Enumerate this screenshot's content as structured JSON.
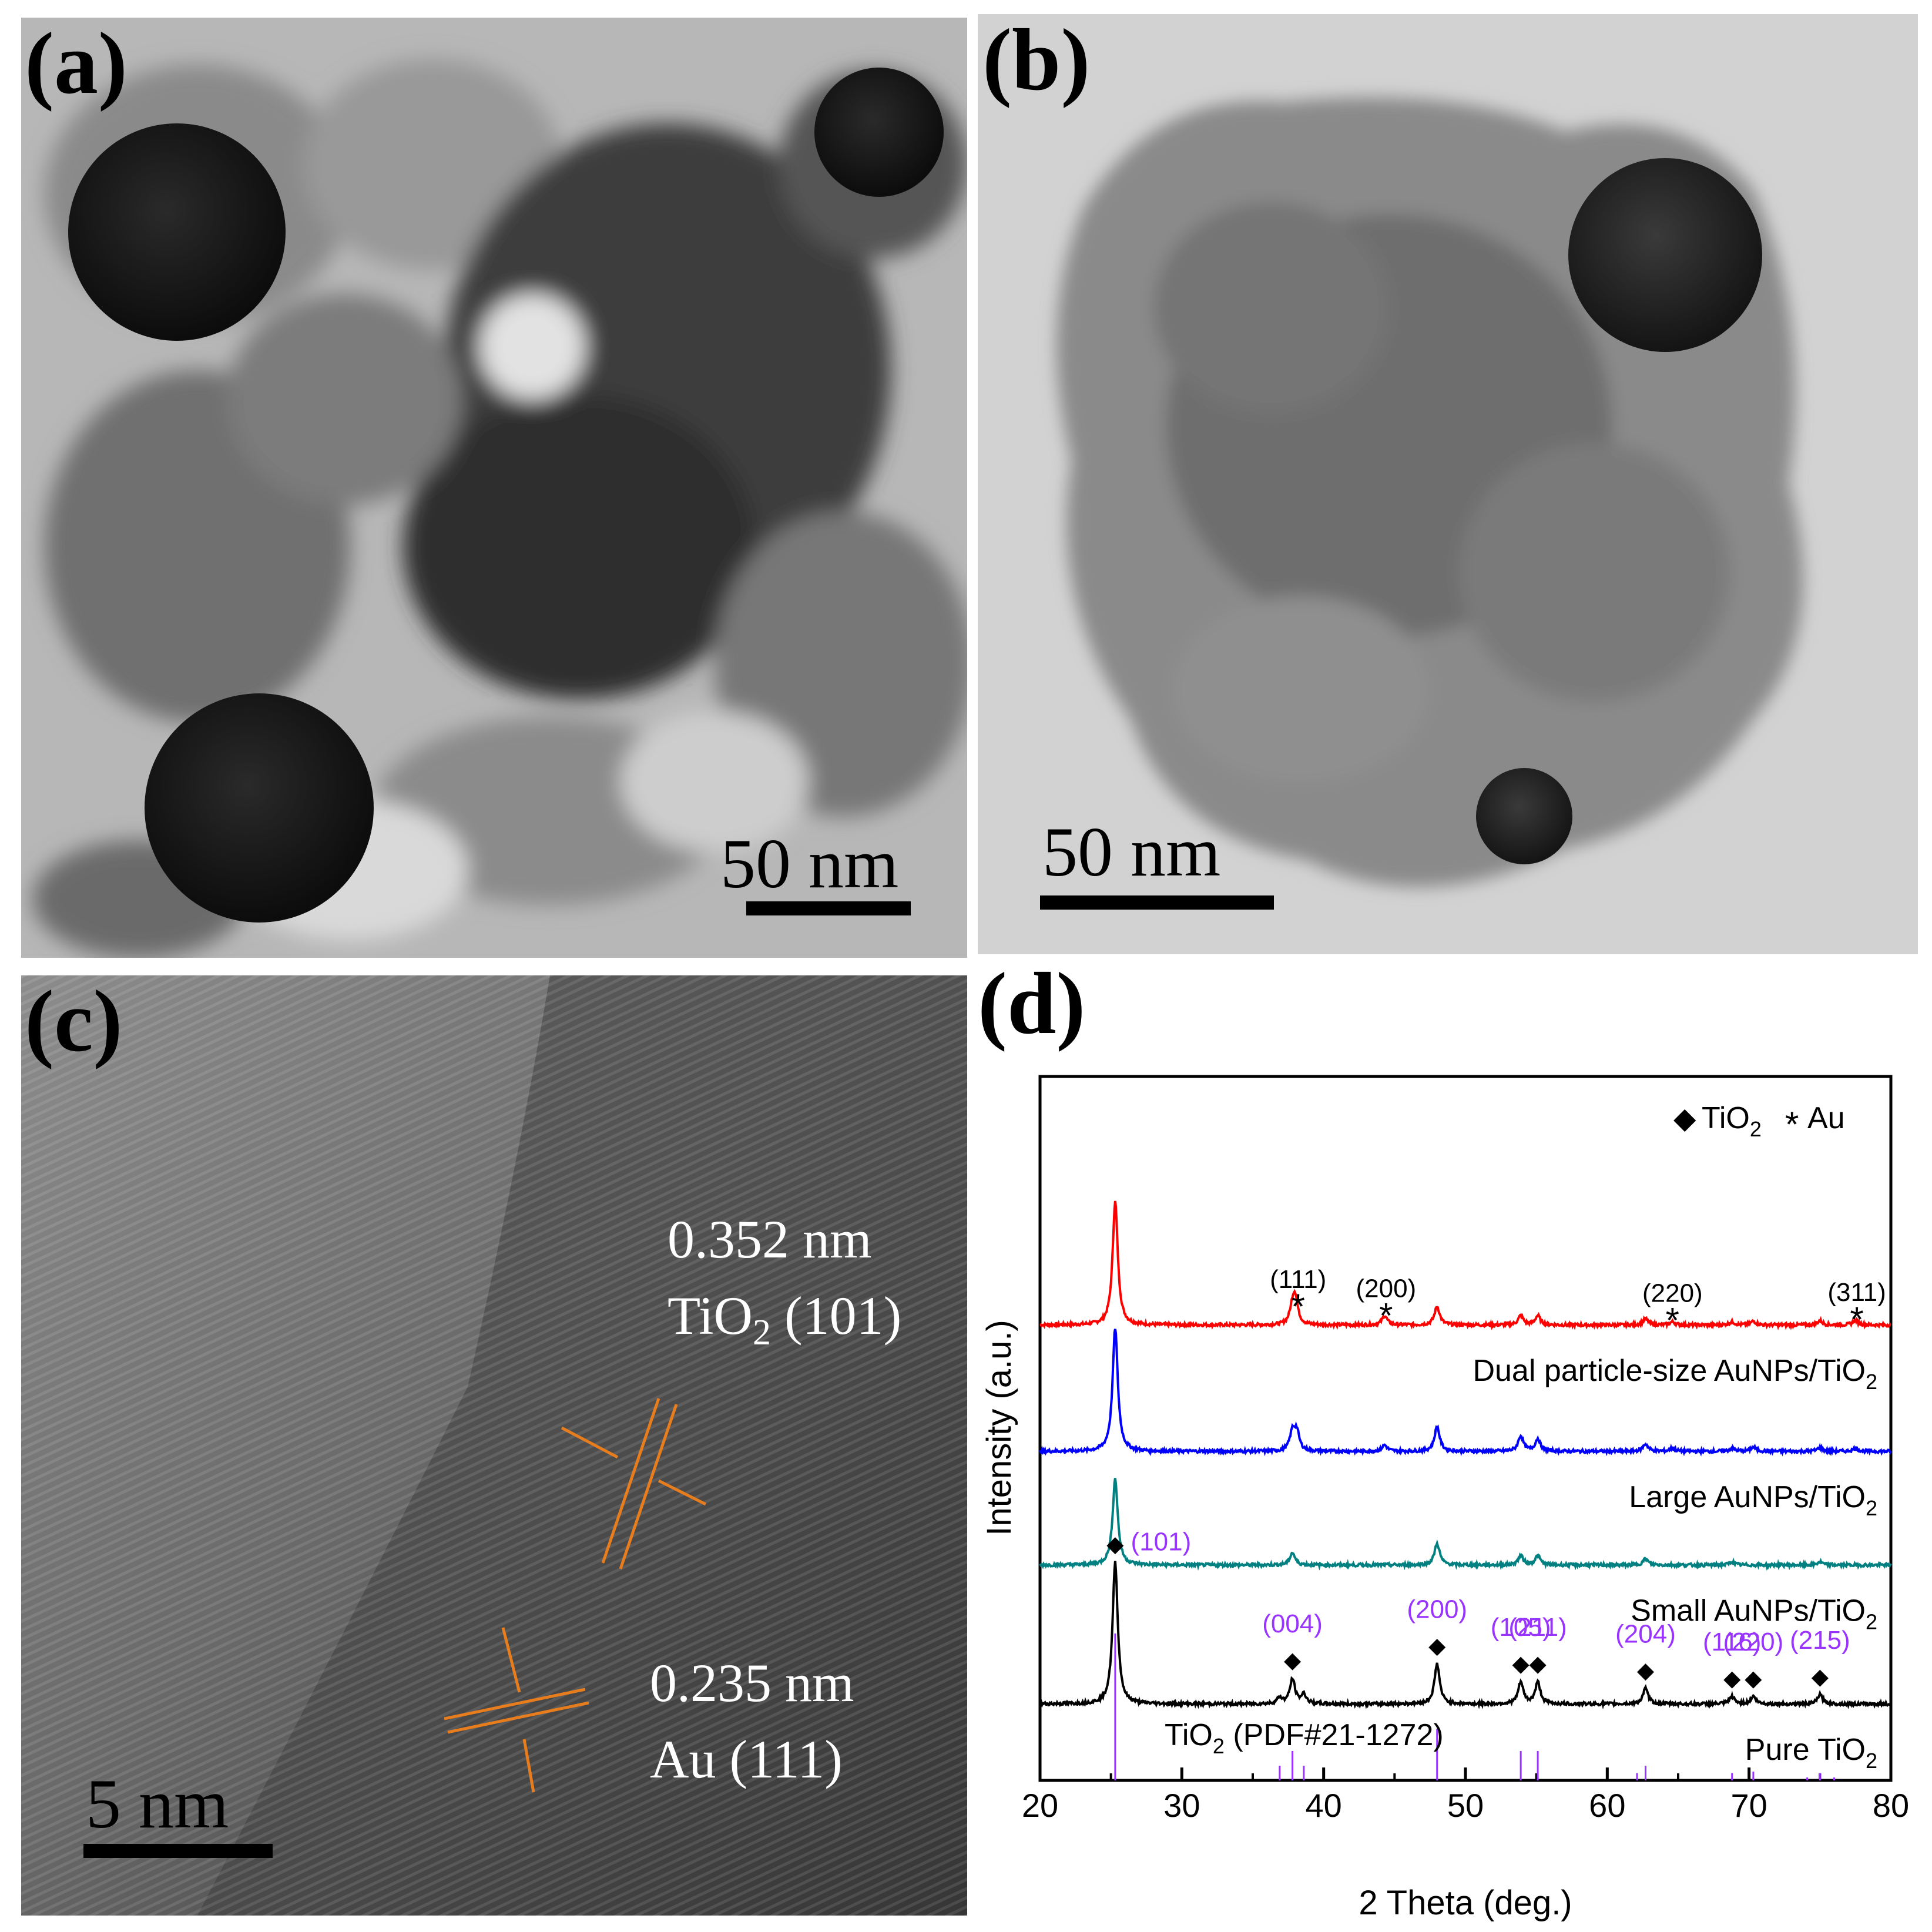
{
  "panels": {
    "a": {
      "label": "(a)",
      "scale_bar": "50 nm"
    },
    "b": {
      "label": "(b)",
      "scale_bar": "50 nm"
    },
    "c": {
      "label": "(c)",
      "scale_bar": "5 nm",
      "fringe_tio2_spacing": "0.352 nm",
      "fringe_tio2_phase": "TiO",
      "fringe_tio2_phase_sub": "2",
      "fringe_tio2_plane": " (101)",
      "fringe_au_spacing": "0.235 nm",
      "fringe_au_plane": "Au (111)"
    },
    "d": {
      "label": "(d)"
    }
  },
  "chart_data": {
    "type": "line",
    "xlabel": "2 Theta (deg.)",
    "ylabel": "Intensity (a.u.)",
    "xlim": [
      20,
      80
    ],
    "xticks": [
      20,
      30,
      40,
      50,
      60,
      70,
      80
    ],
    "legend": {
      "tio2_marker": "◆",
      "tio2_text": "TiO",
      "tio2_sub": "2",
      "au_marker": "*",
      "au_text": "Au",
      "placement": "top-right"
    },
    "series": [
      {
        "name": "Dual particle-size AuNPs/TiO2",
        "label_main": "Dual particle-size AuNPs/TiO",
        "label_sub": "2",
        "color": "#ff0000",
        "offset": 3.0,
        "peaks": [
          [
            25.3,
            2.0
          ],
          [
            37.8,
            0.25
          ],
          [
            38.0,
            0.4
          ],
          [
            44.3,
            0.15
          ],
          [
            48.0,
            0.3
          ],
          [
            53.9,
            0.15
          ],
          [
            55.1,
            0.15
          ],
          [
            62.7,
            0.1
          ],
          [
            64.6,
            0.05
          ],
          [
            68.8,
            0.05
          ],
          [
            70.3,
            0.06
          ],
          [
            75.0,
            0.07
          ],
          [
            77.5,
            0.08
          ]
        ]
      },
      {
        "name": "Large AuNPs/TiO2",
        "label_main": "Large AuNPs/TiO",
        "label_sub": "2",
        "color": "#0000ff",
        "offset": 2.0,
        "peaks": [
          [
            25.3,
            2.0
          ],
          [
            37.8,
            0.3
          ],
          [
            38.1,
            0.3
          ],
          [
            44.3,
            0.1
          ],
          [
            48.0,
            0.4
          ],
          [
            53.9,
            0.25
          ],
          [
            55.1,
            0.2
          ],
          [
            62.7,
            0.12
          ],
          [
            64.6,
            0.05
          ],
          [
            68.8,
            0.05
          ],
          [
            70.3,
            0.07
          ],
          [
            75.0,
            0.06
          ],
          [
            77.5,
            0.05
          ]
        ]
      },
      {
        "name": "Small AuNPs/TiO2",
        "label_main": "Small AuNPs/TiO",
        "label_sub": "2",
        "color": "#008080",
        "offset": 1.1,
        "peaks": [
          [
            25.3,
            1.4
          ],
          [
            37.8,
            0.2
          ],
          [
            48.0,
            0.35
          ],
          [
            53.9,
            0.15
          ],
          [
            55.1,
            0.15
          ],
          [
            62.7,
            0.1
          ],
          [
            68.8,
            0.05
          ],
          [
            75.0,
            0.05
          ]
        ]
      },
      {
        "name": "Pure TiO2",
        "label_main": "Pure TiO",
        "label_sub": "2",
        "color": "#000000",
        "offset": 0.0,
        "peaks": [
          [
            25.3,
            2.3
          ],
          [
            36.9,
            0.1
          ],
          [
            37.8,
            0.4
          ],
          [
            38.6,
            0.15
          ],
          [
            48.0,
            0.65
          ],
          [
            53.9,
            0.35
          ],
          [
            55.1,
            0.35
          ],
          [
            62.7,
            0.25
          ],
          [
            68.8,
            0.12
          ],
          [
            70.3,
            0.12
          ],
          [
            75.0,
            0.15
          ]
        ]
      }
    ],
    "tio2_hkl": [
      {
        "x": 25.3,
        "label": "(101)"
      },
      {
        "x": 37.8,
        "label": "(004)"
      },
      {
        "x": 48.0,
        "label": "(200)"
      },
      {
        "x": 53.9,
        "label": "(105)"
      },
      {
        "x": 55.1,
        "label": "(211)"
      },
      {
        "x": 62.7,
        "label": "(204)"
      },
      {
        "x": 68.8,
        "label": "(116)"
      },
      {
        "x": 70.3,
        "label": "(220)"
      },
      {
        "x": 75.0,
        "label": "(215)"
      }
    ],
    "au_hkl": [
      {
        "x": 38.2,
        "label": "(111)"
      },
      {
        "x": 44.4,
        "label": "(200)"
      },
      {
        "x": 64.6,
        "label": "(220)"
      },
      {
        "x": 77.6,
        "label": "(311)"
      }
    ],
    "reference": {
      "label_main": "TiO",
      "label_sub": "2",
      "label_rest": " (PDF#21-1272)",
      "color": "#9933ff",
      "lines": [
        [
          25.3,
          1.0
        ],
        [
          36.9,
          0.1
        ],
        [
          37.8,
          0.2
        ],
        [
          38.6,
          0.1
        ],
        [
          48.0,
          0.35
        ],
        [
          53.9,
          0.2
        ],
        [
          55.1,
          0.2
        ],
        [
          62.1,
          0.05
        ],
        [
          62.7,
          0.1
        ],
        [
          68.8,
          0.05
        ],
        [
          70.3,
          0.06
        ],
        [
          74.1,
          0.02
        ],
        [
          75.0,
          0.05
        ],
        [
          76.0,
          0.02
        ]
      ]
    }
  },
  "colors": {
    "hkl_tio2": "#9933ff",
    "fringe": "#e87d1e"
  }
}
